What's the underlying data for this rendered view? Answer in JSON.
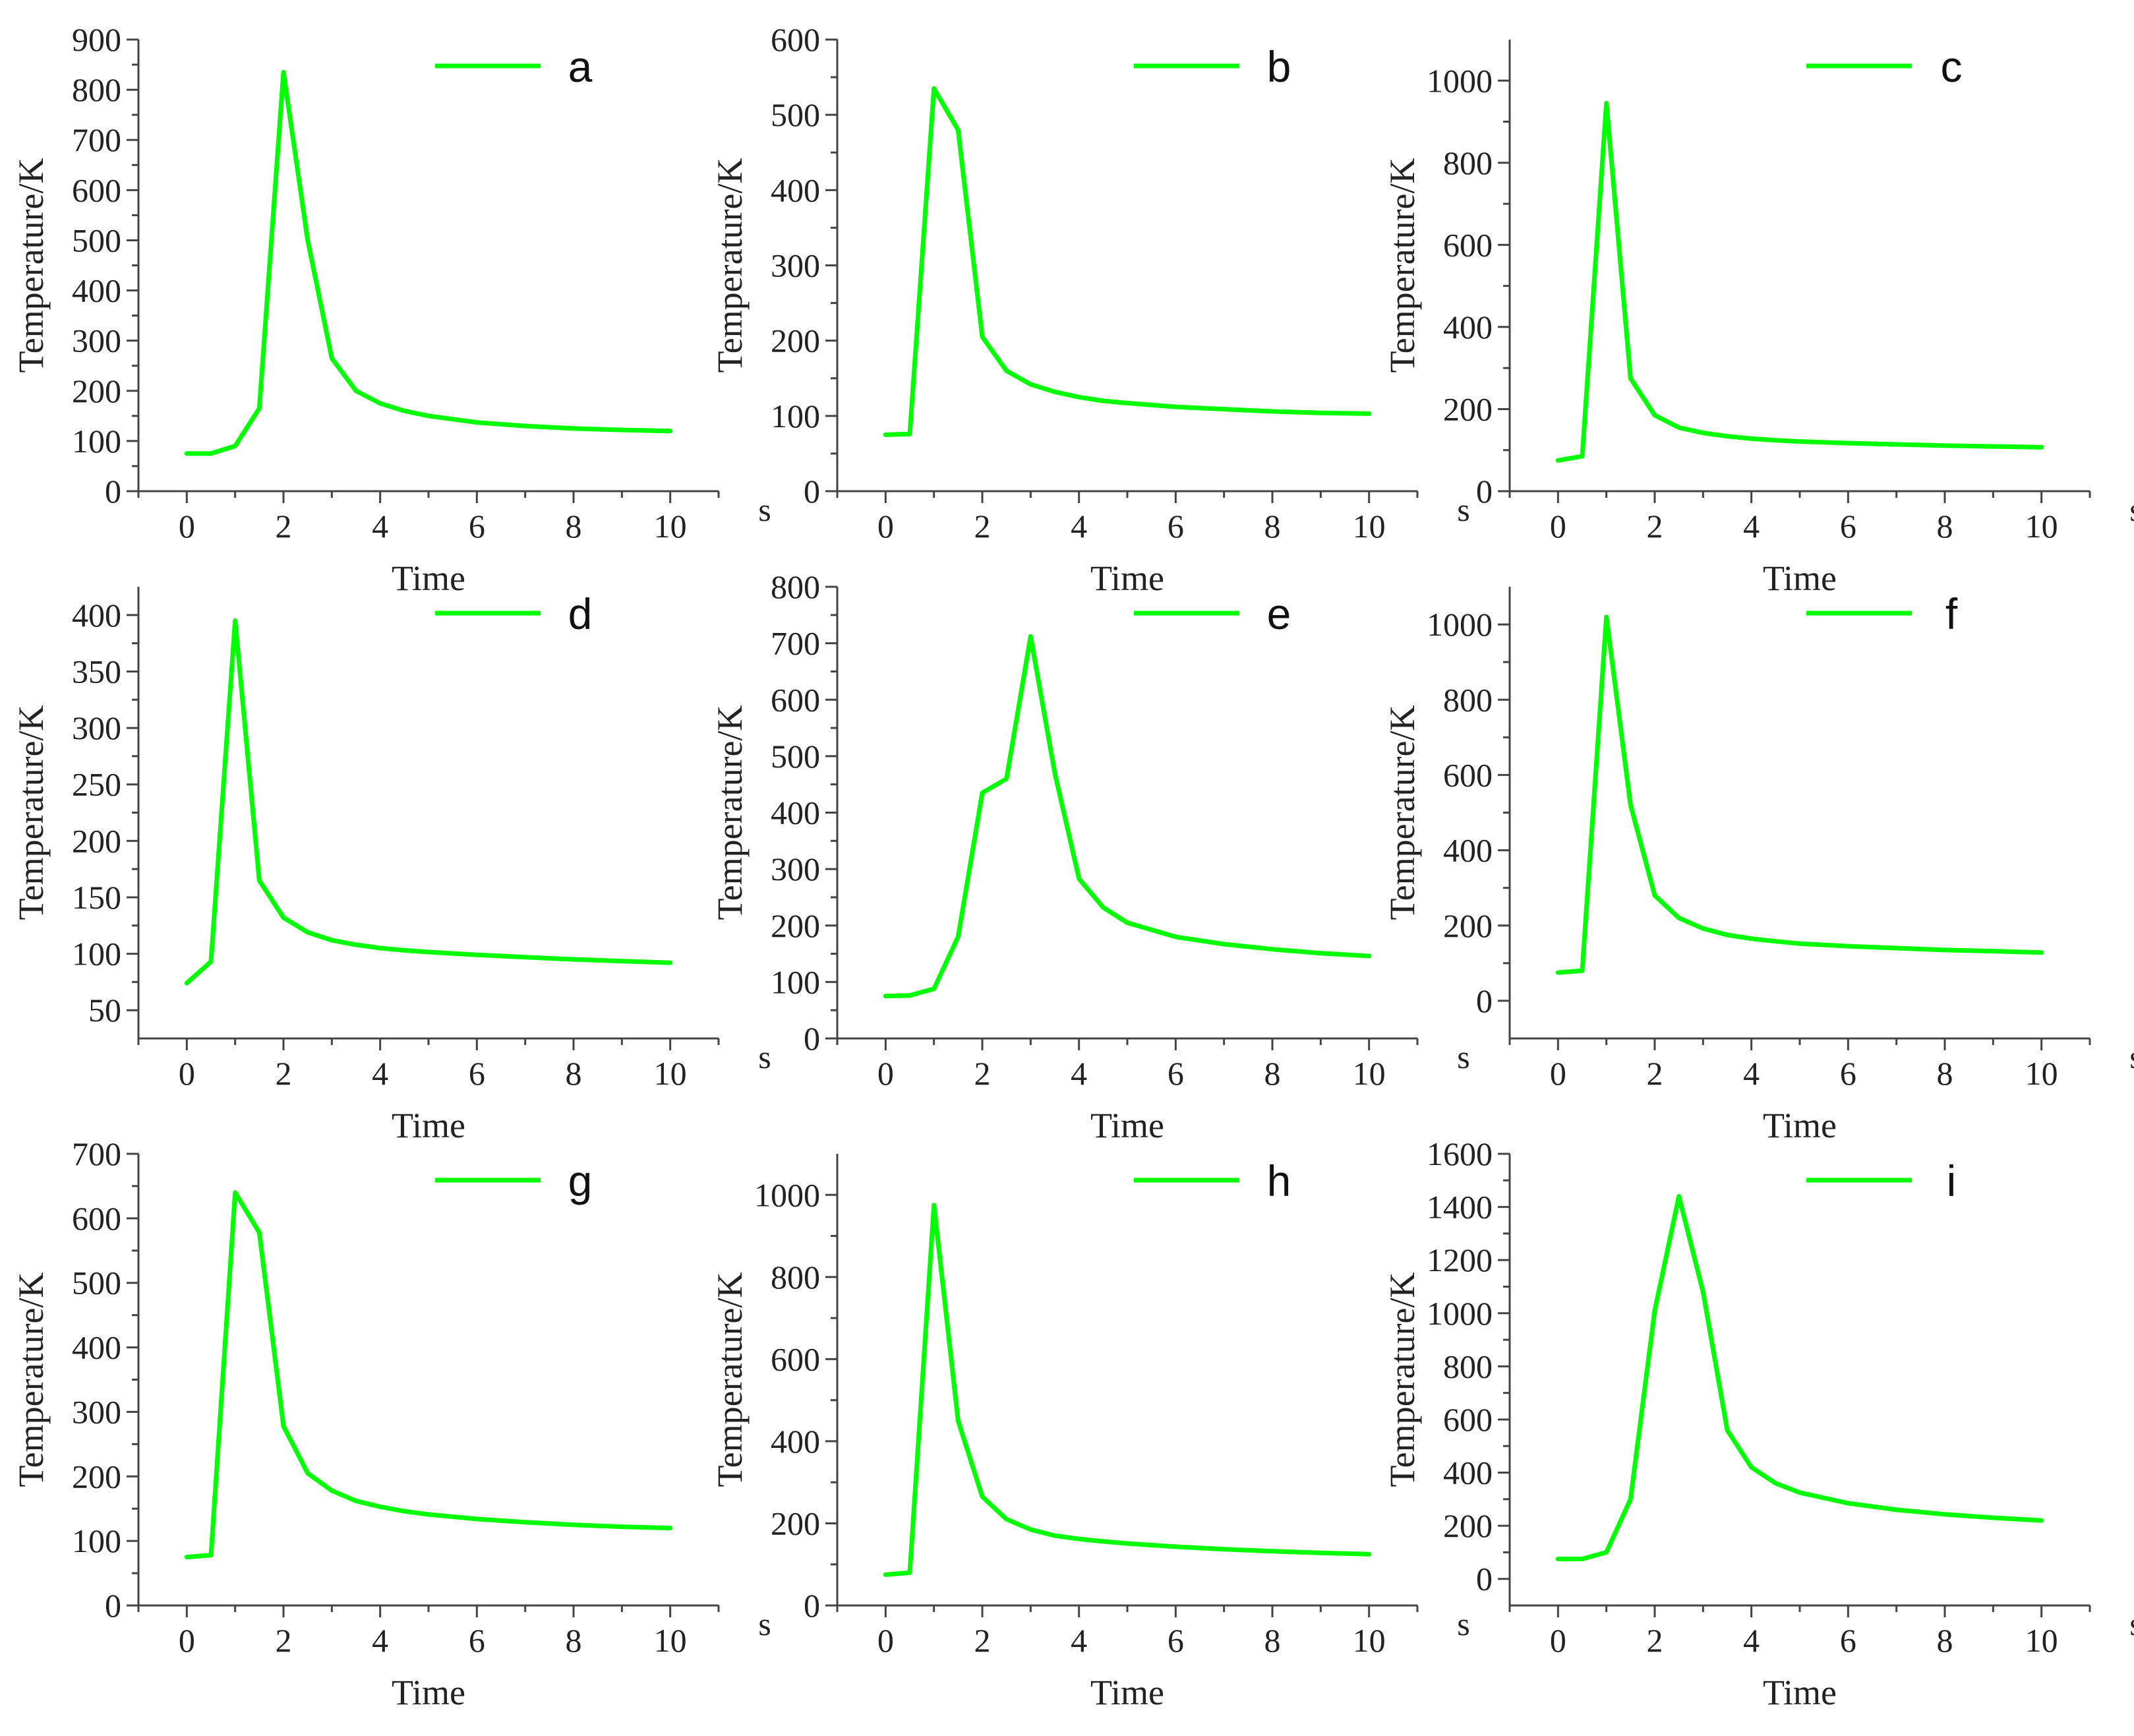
{
  "figure": {
    "line_color": "#00ff00",
    "axis_color": "#444444"
  },
  "chart_data": [
    {
      "id": "a",
      "type": "line",
      "title": "",
      "legend": "a",
      "xlabel": "Time",
      "ylabel": "Temperature/K",
      "x_unit": "s",
      "xlim": [
        -1,
        11
      ],
      "xticks": [
        0,
        2,
        4,
        6,
        8,
        10
      ],
      "ylim": [
        0,
        900
      ],
      "yticks": [
        0,
        100,
        200,
        300,
        400,
        500,
        600,
        700,
        800,
        900
      ],
      "x": [
        0,
        0.5,
        1,
        1.5,
        2,
        2.5,
        3,
        3.5,
        4,
        4.5,
        5,
        6,
        7,
        8,
        9,
        10
      ],
      "y": [
        75,
        75,
        90,
        165,
        835,
        500,
        265,
        200,
        175,
        160,
        150,
        137,
        130,
        125,
        122,
        120
      ]
    },
    {
      "id": "b",
      "type": "line",
      "title": "",
      "legend": "b",
      "xlabel": "Time",
      "ylabel": "Temperature/K",
      "x_unit": "s",
      "xlim": [
        -1,
        11
      ],
      "xticks": [
        0,
        2,
        4,
        6,
        8,
        10
      ],
      "ylim": [
        0,
        600
      ],
      "yticks": [
        0,
        100,
        200,
        300,
        400,
        500,
        600
      ],
      "x": [
        0,
        0.5,
        1,
        1.5,
        2,
        2.5,
        3,
        3.5,
        4,
        4.5,
        5,
        6,
        7,
        8,
        9,
        10
      ],
      "y": [
        75,
        76,
        535,
        480,
        205,
        160,
        142,
        132,
        125,
        120,
        117,
        112,
        109,
        106,
        104,
        103
      ]
    },
    {
      "id": "c",
      "type": "line",
      "title": "",
      "legend": "c",
      "xlabel": "Time",
      "ylabel": "Temperature/K",
      "x_unit": "s",
      "xlim": [
        -1,
        11
      ],
      "xticks": [
        0,
        2,
        4,
        6,
        8,
        10
      ],
      "ylim": [
        0,
        1100
      ],
      "yticks": [
        0,
        200,
        400,
        600,
        800,
        1000
      ],
      "x": [
        0,
        0.5,
        1,
        1.5,
        2,
        2.5,
        3,
        3.5,
        4,
        4.5,
        5,
        6,
        7,
        8,
        9,
        10
      ],
      "y": [
        75,
        85,
        945,
        275,
        185,
        155,
        142,
        134,
        128,
        124,
        121,
        117,
        114,
        111,
        109,
        107
      ]
    },
    {
      "id": "d",
      "type": "line",
      "title": "",
      "legend": "d",
      "xlabel": "Time",
      "ylabel": "Temperature/K",
      "x_unit": "s",
      "xlim": [
        -1,
        11
      ],
      "xticks": [
        0,
        2,
        4,
        6,
        8,
        10
      ],
      "ylim": [
        25,
        425
      ],
      "yticks": [
        50,
        100,
        150,
        200,
        250,
        300,
        350,
        400
      ],
      "x": [
        0,
        0.5,
        1,
        1.5,
        2,
        2.5,
        3,
        3.5,
        4,
        4.5,
        5,
        6,
        7,
        8,
        9,
        10
      ],
      "y": [
        74,
        93,
        395,
        165,
        132,
        119,
        112,
        108,
        105,
        103,
        101.5,
        99,
        97,
        95,
        93.5,
        92
      ]
    },
    {
      "id": "e",
      "type": "line",
      "title": "",
      "legend": "e",
      "xlabel": "Time",
      "ylabel": "Temperature/K",
      "x_unit": "s",
      "xlim": [
        -1,
        11
      ],
      "xticks": [
        0,
        2,
        4,
        6,
        8,
        10
      ],
      "ylim": [
        0,
        800
      ],
      "yticks": [
        0,
        100,
        200,
        300,
        400,
        500,
        600,
        700,
        800
      ],
      "x": [
        0,
        0.5,
        1,
        1.5,
        2,
        2.5,
        3,
        3.5,
        4,
        4.5,
        5,
        6,
        7,
        8,
        9,
        10
      ],
      "y": [
        75,
        76,
        88,
        180,
        435,
        460,
        712,
        470,
        283,
        232,
        205,
        180,
        167,
        158,
        151,
        146
      ]
    },
    {
      "id": "f",
      "type": "line",
      "title": "",
      "legend": "f",
      "xlabel": "Time",
      "ylabel": "Temperature/K",
      "x_unit": "s",
      "xlim": [
        -1,
        11
      ],
      "xticks": [
        0,
        2,
        4,
        6,
        8,
        10
      ],
      "ylim": [
        -100,
        1100
      ],
      "yticks": [
        0,
        200,
        400,
        600,
        800,
        1000
      ],
      "x": [
        0,
        0.5,
        1,
        1.5,
        2,
        2.5,
        3,
        3.5,
        4,
        4.5,
        5,
        6,
        7,
        8,
        9,
        10
      ],
      "y": [
        75,
        80,
        1020,
        520,
        280,
        220,
        192,
        175,
        165,
        158,
        152,
        145,
        140,
        135,
        132,
        128
      ]
    },
    {
      "id": "g",
      "type": "line",
      "title": "",
      "legend": "g",
      "xlabel": "Time",
      "ylabel": "Temperature/K",
      "x_unit": "s",
      "xlim": [
        -1,
        11
      ],
      "xticks": [
        0,
        2,
        4,
        6,
        8,
        10
      ],
      "ylim": [
        0,
        700
      ],
      "yticks": [
        0,
        100,
        200,
        300,
        400,
        500,
        600,
        700
      ],
      "x": [
        0,
        0.5,
        1,
        1.5,
        2,
        2.5,
        3,
        3.5,
        4,
        4.5,
        5,
        6,
        7,
        8,
        9,
        10
      ],
      "y": [
        75,
        78,
        640,
        578,
        278,
        205,
        178,
        162,
        153,
        146,
        141,
        134,
        129,
        125,
        122,
        120
      ]
    },
    {
      "id": "h",
      "type": "line",
      "title": "",
      "legend": "h",
      "xlabel": "Time",
      "ylabel": "Temperature/K",
      "x_unit": "s",
      "xlim": [
        -1,
        11
      ],
      "xticks": [
        0,
        2,
        4,
        6,
        8,
        10
      ],
      "ylim": [
        0,
        1100
      ],
      "yticks": [
        0,
        200,
        400,
        600,
        800,
        1000
      ],
      "x": [
        0,
        0.5,
        1,
        1.5,
        2,
        2.5,
        3,
        3.5,
        4,
        4.5,
        5,
        6,
        7,
        8,
        9,
        10
      ],
      "y": [
        75,
        80,
        975,
        450,
        265,
        210,
        185,
        170,
        162,
        156,
        151,
        143,
        137,
        132,
        128,
        125
      ]
    },
    {
      "id": "i",
      "type": "line",
      "title": "",
      "legend": "i",
      "xlabel": "Time",
      "ylabel": "Temperature/K",
      "x_unit": "s",
      "xlim": [
        -1,
        11
      ],
      "xticks": [
        0,
        2,
        4,
        6,
        8,
        10
      ],
      "ylim": [
        -100,
        1600
      ],
      "yticks": [
        0,
        200,
        400,
        600,
        800,
        1000,
        1200,
        1400,
        1600
      ],
      "x": [
        0,
        0.5,
        1,
        1.5,
        2,
        2.5,
        3,
        3.5,
        4,
        4.5,
        5,
        6,
        7,
        8,
        9,
        10
      ],
      "y": [
        75,
        75,
        100,
        300,
        1010,
        1440,
        1080,
        560,
        420,
        360,
        325,
        285,
        260,
        243,
        230,
        220
      ]
    }
  ]
}
